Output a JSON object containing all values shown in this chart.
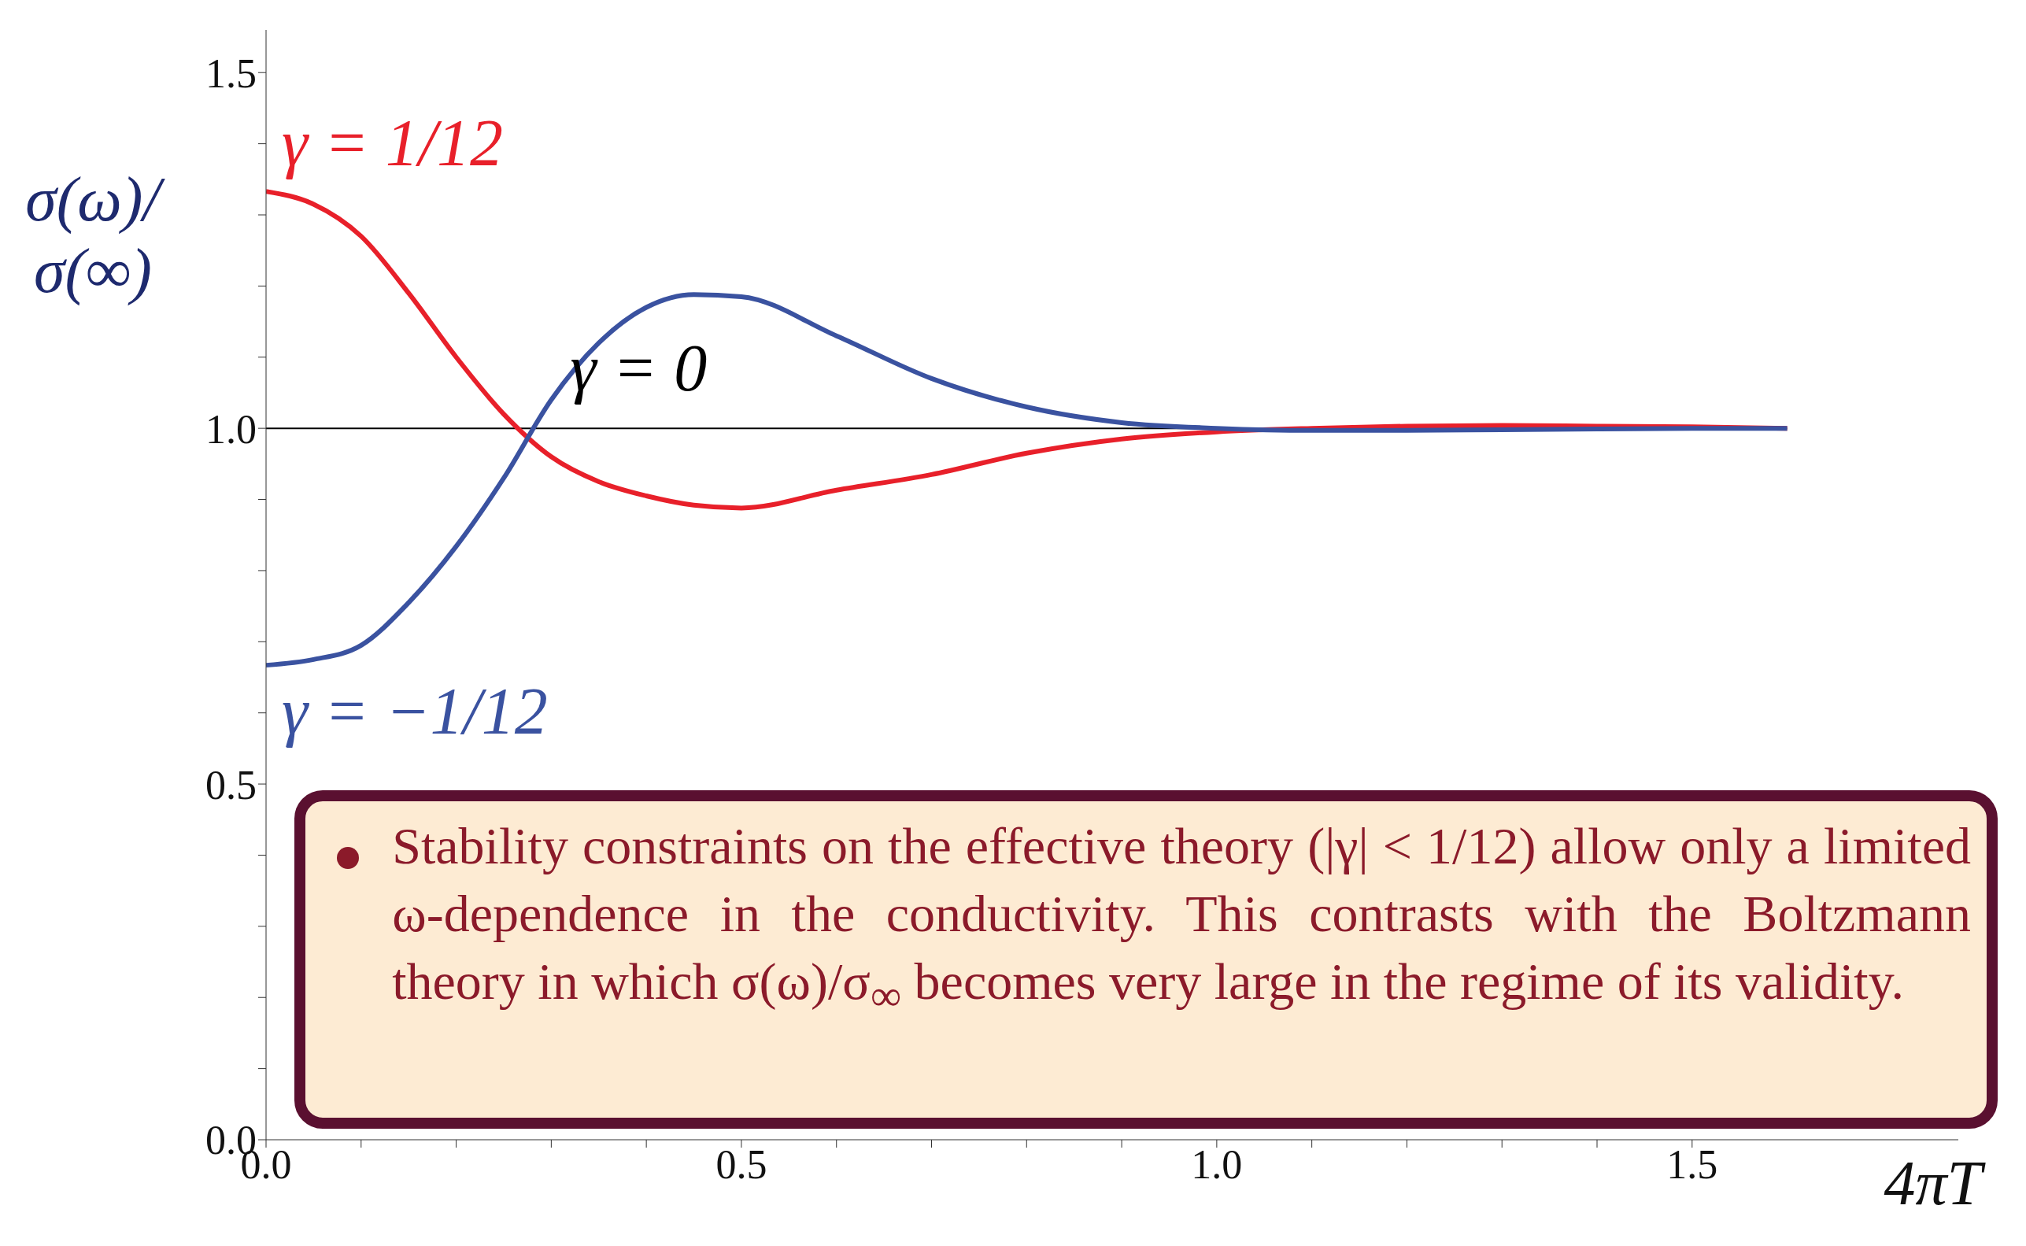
{
  "chart_data": {
    "type": "line",
    "xlabel": "4πT",
    "ylabel": "σ(ω)/σ(∞)",
    "xlim": [
      0,
      1.78
    ],
    "xticks": [
      {
        "value": 0,
        "label": "0.0"
      },
      {
        "value": 0.1,
        "label": null
      },
      {
        "value": 0.2,
        "label": null
      },
      {
        "value": 0.3,
        "label": null
      },
      {
        "value": 0.4,
        "label": null
      },
      {
        "value": 0.5,
        "label": "0.5"
      },
      {
        "value": 0.6,
        "label": null
      },
      {
        "value": 0.7,
        "label": null
      },
      {
        "value": 0.8,
        "label": null
      },
      {
        "value": 0.9,
        "label": null
      },
      {
        "value": 1,
        "label": "1.0"
      },
      {
        "value": 1.1,
        "label": null
      },
      {
        "value": 1.2,
        "label": null
      },
      {
        "value": 1.3,
        "label": null
      },
      {
        "value": 1.4,
        "label": null
      },
      {
        "value": 1.5,
        "label": "1.5"
      }
    ],
    "ylim": [
      0,
      1.56
    ],
    "yticks": [
      {
        "value": 0,
        "label": "0.0"
      },
      {
        "value": 0.1,
        "label": null
      },
      {
        "value": 0.2,
        "label": null
      },
      {
        "value": 0.3,
        "label": null
      },
      {
        "value": 0.4,
        "label": null
      },
      {
        "value": 0.5,
        "label": "0.5"
      },
      {
        "value": 0.6,
        "label": null
      },
      {
        "value": 0.7,
        "label": null
      },
      {
        "value": 0.8,
        "label": null
      },
      {
        "value": 0.9,
        "label": null
      },
      {
        "value": 1,
        "label": "1.0"
      },
      {
        "value": 1.1,
        "label": null
      },
      {
        "value": 1.2,
        "label": null
      },
      {
        "value": 1.3,
        "label": null
      },
      {
        "value": 1.4,
        "label": null
      },
      {
        "value": 1.5,
        "label": "1.5"
      }
    ],
    "grid": false,
    "legend": false,
    "series": [
      {
        "name": "γ = 0",
        "color": "#000000",
        "x": [
          0,
          1.6
        ],
        "values": [
          1,
          1
        ]
      },
      {
        "name": "γ = 1/12",
        "color": "#e8202a",
        "x": [
          0,
          0.05,
          0.1,
          0.15,
          0.2,
          0.25,
          0.3,
          0.35,
          0.4,
          0.45,
          0.5,
          0.6,
          0.7,
          0.8,
          0.9,
          1.0,
          1.1,
          1.2,
          1.3,
          1.4,
          1.5,
          1.6
        ],
        "values": [
          1.333,
          1.315,
          1.27,
          1.19,
          1.1,
          1.02,
          0.96,
          0.925,
          0.905,
          0.892,
          0.888,
          0.913,
          0.935,
          0.965,
          0.985,
          0.995,
          1.0,
          1.003,
          1.004,
          1.003,
          1.002,
          1.0
        ]
      },
      {
        "name": "γ = −1/12",
        "color": "#3a52a0",
        "x": [
          0,
          0.05,
          0.1,
          0.15,
          0.2,
          0.25,
          0.3,
          0.35,
          0.4,
          0.45,
          0.5,
          0.6,
          0.7,
          0.8,
          0.9,
          1.0,
          1.1,
          1.2,
          1.3,
          1.4,
          1.5,
          1.6
        ],
        "values": [
          0.667,
          0.675,
          0.695,
          0.755,
          0.834,
          0.93,
          1.04,
          1.12,
          1.17,
          1.188,
          1.185,
          1.13,
          1.07,
          1.03,
          1.008,
          1.0,
          0.997,
          0.997,
          0.998,
          0.999,
          1.0,
          1.0
        ]
      }
    ],
    "annotations": [
      "Stability constraints on the effective theory (|γ| < 1/12) allow only a limited ω-dependence in the conductivity. This contrasts with the Boltzmann theory in which σ(ω)/σ$_{∞}$ becomes very large in the regime of its validity."
    ]
  }
}
